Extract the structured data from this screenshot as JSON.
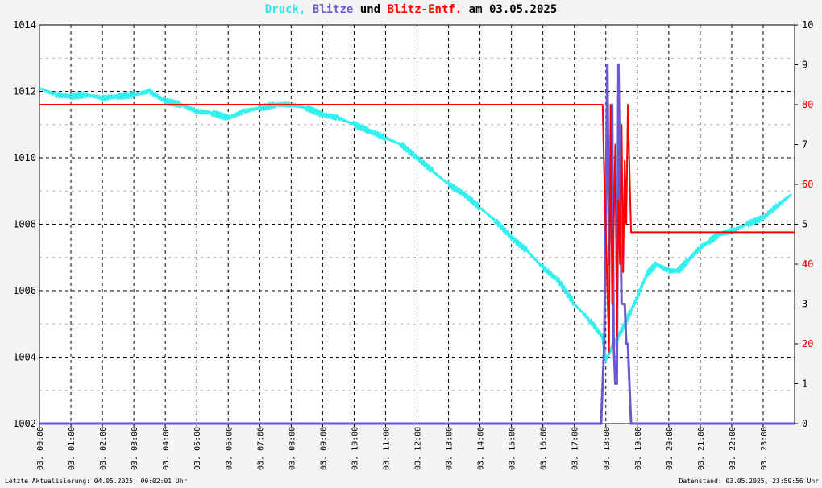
{
  "title": {
    "part1": "Druck,",
    "part2": "Blitze",
    "part3": "und",
    "part4": "Blitz-Entf.",
    "part5": "am 03.05.2025"
  },
  "footer": {
    "left": "Letzte Aktualisierung: 04.05.2025, 00:02:01 Uhr",
    "right": "Datenstand: 03.05.2025, 23:59:56 Uhr"
  },
  "colors": {
    "pressure": "#33f0f0",
    "strikes": "#6a5acd",
    "distance": "#ff0000",
    "axis_left": "#000000",
    "axis_right_strikes": "#000000",
    "axis_right_distance": "#ff0000"
  },
  "chart_data": {
    "type": "line",
    "title": "Druck, Blitze und Blitz-Entf. am 03.05.2025",
    "x_ticks": [
      "03. 00:00",
      "03. 01:00",
      "03. 02:00",
      "03. 03:00",
      "03. 04:00",
      "03. 05:00",
      "03. 06:00",
      "03. 07:00",
      "03. 08:00",
      "03. 09:00",
      "03. 10:00",
      "03. 11:00",
      "03. 12:00",
      "03. 13:00",
      "03. 14:00",
      "03. 15:00",
      "03. 16:00",
      "03. 17:00",
      "03. 18:00",
      "03. 19:00",
      "03. 20:00",
      "03. 21:00",
      "03. 22:00",
      "03. 23:00"
    ],
    "xlim": [
      0,
      24
    ],
    "y_left": {
      "ticks": [
        1002,
        1004,
        1006,
        1008,
        1010,
        1012,
        1014
      ],
      "lim": [
        1002,
        1014
      ]
    },
    "y_right_strikes": {
      "ticks": [
        0,
        1,
        2,
        3,
        4,
        5,
        6,
        7,
        8,
        9,
        10
      ],
      "lim": [
        0,
        10
      ]
    },
    "y_right_distance": {
      "ticks": [
        20,
        40,
        60,
        80
      ],
      "lim": [
        0,
        100
      ]
    },
    "grid": true,
    "series": [
      {
        "name": "Druck",
        "axis": "left",
        "x": [
          0,
          0.5,
          1,
          1.5,
          2,
          2.5,
          3,
          3.5,
          4,
          4.5,
          5,
          5.5,
          6,
          6.5,
          7,
          7.5,
          8,
          8.5,
          9,
          9.5,
          10,
          10.5,
          11,
          11.5,
          12,
          12.5,
          13,
          13.5,
          14,
          14.5,
          15,
          15.5,
          16,
          16.5,
          17,
          17.5,
          17.9,
          18.0,
          18.2,
          18.5,
          18.8,
          19.0,
          19.3,
          19.6,
          20.0,
          20.3,
          20.6,
          21.0,
          21.3,
          21.6,
          22.0,
          22.5,
          23.0,
          23.5,
          23.9
        ],
        "y": [
          1012.1,
          1011.9,
          1011.85,
          1011.9,
          1011.8,
          1011.85,
          1011.9,
          1012.0,
          1011.7,
          1011.6,
          1011.4,
          1011.35,
          1011.2,
          1011.4,
          1011.5,
          1011.6,
          1011.6,
          1011.5,
          1011.3,
          1011.2,
          1011.0,
          1010.8,
          1010.6,
          1010.4,
          1010.0,
          1009.6,
          1009.2,
          1008.9,
          1008.5,
          1008.1,
          1007.6,
          1007.2,
          1006.7,
          1006.3,
          1005.6,
          1005.1,
          1004.6,
          1003.9,
          1004.3,
          1004.8,
          1005.4,
          1005.8,
          1006.5,
          1006.8,
          1006.6,
          1006.6,
          1006.9,
          1007.3,
          1007.5,
          1007.7,
          1007.8,
          1008.0,
          1008.2,
          1008.6,
          1008.9
        ]
      },
      {
        "name": "Blitze",
        "axis": "right_strikes",
        "x": [
          0,
          17.85,
          17.9,
          17.95,
          18.05,
          18.1,
          18.2,
          18.25,
          18.3,
          18.35,
          18.4,
          18.5,
          18.6,
          18.65,
          18.7,
          18.75,
          18.8,
          24
        ],
        "y": [
          0,
          0,
          1,
          2,
          9,
          4,
          8,
          2,
          1,
          1,
          9,
          3,
          3,
          2,
          2,
          1,
          0,
          0
        ]
      },
      {
        "name": "Blitz-Entf.",
        "axis": "right_distance",
        "x": [
          0,
          17.9,
          17.95,
          18.0,
          18.1,
          18.15,
          18.2,
          18.3,
          18.35,
          18.4,
          18.45,
          18.5,
          18.55,
          18.6,
          18.65,
          18.7,
          18.8,
          24
        ],
        "y": [
          80,
          80,
          62,
          48,
          18,
          80,
          30,
          70,
          22,
          56,
          40,
          75,
          38,
          66,
          50,
          80,
          48,
          48
        ]
      }
    ]
  }
}
